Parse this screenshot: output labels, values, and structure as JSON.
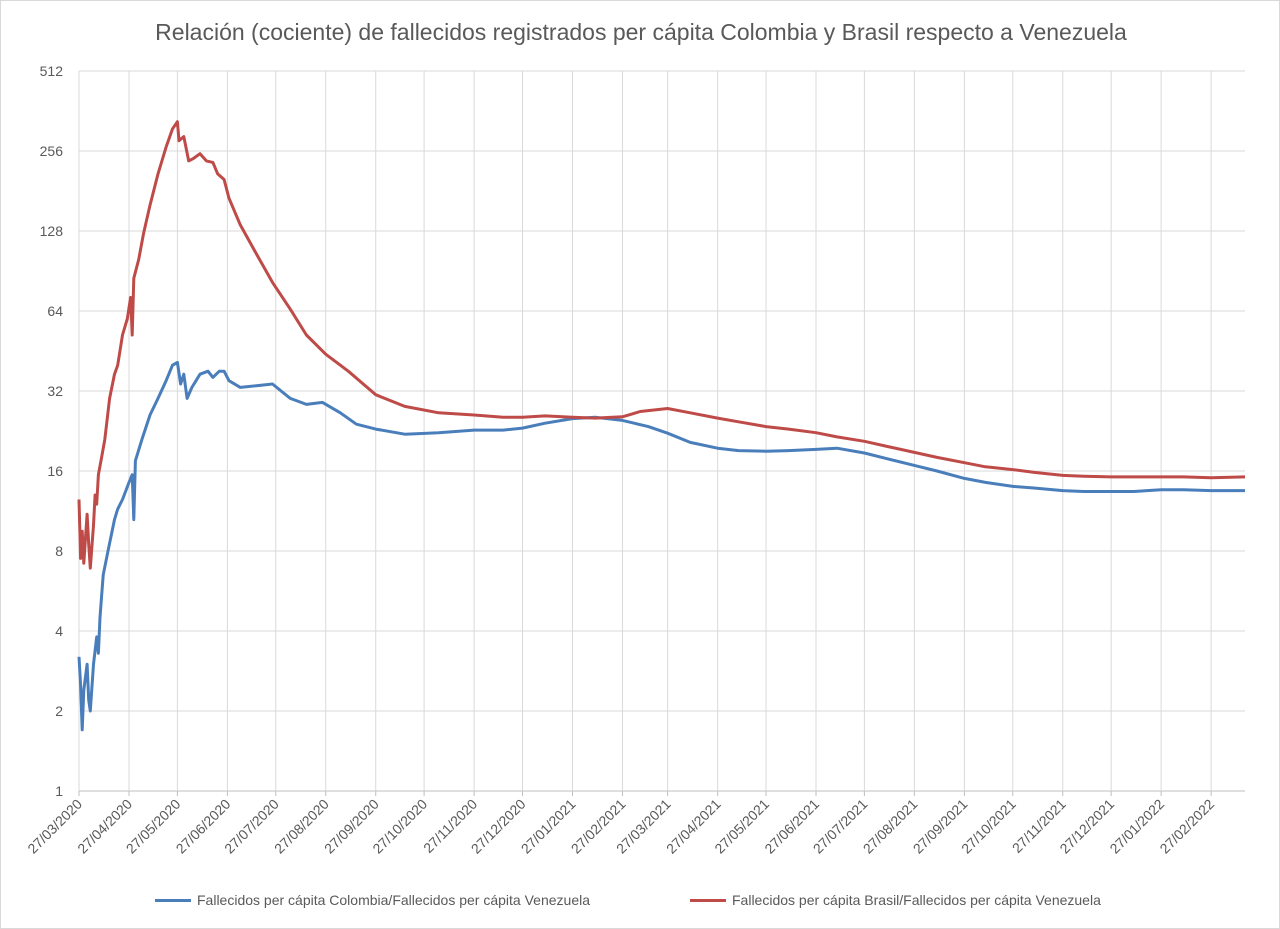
{
  "chart_data": {
    "type": "line",
    "title": "Relación (cociente) de fallecidos registrados per cápita Colombia y Brasil respecto a Venezuela",
    "xlabel": "",
    "ylabel": "",
    "y_scale": "log2",
    "ylim": [
      1,
      512
    ],
    "y_ticks": [
      "1",
      "2",
      "4",
      "8",
      "16",
      "32",
      "64",
      "128",
      "256",
      "512"
    ],
    "x_ticks": [
      "27/03/2020",
      "27/04/2020",
      "27/05/2020",
      "27/06/2020",
      "27/07/2020",
      "27/08/2020",
      "27/09/2020",
      "27/10/2020",
      "27/11/2020",
      "27/12/2020",
      "27/01/2021",
      "27/02/2021",
      "27/03/2021",
      "27/04/2021",
      "27/05/2021",
      "27/06/2021",
      "27/07/2021",
      "27/08/2021",
      "27/09/2021",
      "27/10/2021",
      "27/11/2021",
      "27/12/2021",
      "27/01/2022",
      "27/02/2022"
    ],
    "xlim": [
      "2020-03-27",
      "2022-03-20"
    ],
    "grid": true,
    "legend_position": "bottom",
    "series": [
      {
        "name": "Fallecidos per cápita Colombia/Fallecidos per cápita Venezuela",
        "color": "#4a7ebb",
        "points": [
          [
            "2020-03-27",
            3.2
          ],
          [
            "2020-03-28",
            2.5
          ],
          [
            "2020-03-29",
            1.7
          ],
          [
            "2020-03-30",
            2.4
          ],
          [
            "2020-04-01",
            3.0
          ],
          [
            "2020-04-02",
            2.2
          ],
          [
            "2020-04-03",
            2.0
          ],
          [
            "2020-04-05",
            3.0
          ],
          [
            "2020-04-07",
            3.8
          ],
          [
            "2020-04-08",
            3.3
          ],
          [
            "2020-04-09",
            4.5
          ],
          [
            "2020-04-11",
            6.5
          ],
          [
            "2020-04-14",
            8.0
          ],
          [
            "2020-04-18",
            10.5
          ],
          [
            "2020-04-20",
            11.5
          ],
          [
            "2020-04-23",
            12.5
          ],
          [
            "2020-04-27",
            14.5
          ],
          [
            "2020-04-29",
            15.5
          ],
          [
            "2020-04-30",
            10.5
          ],
          [
            "2020-05-01",
            17.5
          ],
          [
            "2020-05-05",
            21
          ],
          [
            "2020-05-10",
            26
          ],
          [
            "2020-05-15",
            30
          ],
          [
            "2020-05-20",
            35
          ],
          [
            "2020-05-24",
            40
          ],
          [
            "2020-05-27",
            41
          ],
          [
            "2020-05-29",
            34
          ],
          [
            "2020-05-31",
            37
          ],
          [
            "2020-06-02",
            30
          ],
          [
            "2020-06-05",
            33
          ],
          [
            "2020-06-10",
            37
          ],
          [
            "2020-06-15",
            38
          ],
          [
            "2020-06-18",
            36
          ],
          [
            "2020-06-22",
            38
          ],
          [
            "2020-06-25",
            38
          ],
          [
            "2020-06-28",
            35
          ],
          [
            "2020-07-05",
            33
          ],
          [
            "2020-07-15",
            33.5
          ],
          [
            "2020-07-25",
            34
          ],
          [
            "2020-08-05",
            30
          ],
          [
            "2020-08-15",
            28.5
          ],
          [
            "2020-08-25",
            29
          ],
          [
            "2020-09-05",
            26.5
          ],
          [
            "2020-09-15",
            24
          ],
          [
            "2020-09-27",
            23
          ],
          [
            "2020-10-15",
            22
          ],
          [
            "2020-11-05",
            22.3
          ],
          [
            "2020-11-27",
            22.8
          ],
          [
            "2020-12-15",
            22.8
          ],
          [
            "2020-12-27",
            23.2
          ],
          [
            "2021-01-10",
            24.2
          ],
          [
            "2021-01-27",
            25.2
          ],
          [
            "2021-02-10",
            25.5
          ],
          [
            "2021-02-27",
            24.8
          ],
          [
            "2021-03-15",
            23.5
          ],
          [
            "2021-03-27",
            22.2
          ],
          [
            "2021-04-10",
            20.5
          ],
          [
            "2021-04-27",
            19.5
          ],
          [
            "2021-05-10",
            19.1
          ],
          [
            "2021-05-27",
            19
          ],
          [
            "2021-06-10",
            19.1
          ],
          [
            "2021-06-27",
            19.3
          ],
          [
            "2021-07-10",
            19.5
          ],
          [
            "2021-07-27",
            18.7
          ],
          [
            "2021-08-10",
            17.8
          ],
          [
            "2021-08-27",
            16.8
          ],
          [
            "2021-09-10",
            16
          ],
          [
            "2021-09-27",
            15
          ],
          [
            "2021-10-10",
            14.5
          ],
          [
            "2021-10-27",
            14
          ],
          [
            "2021-11-10",
            13.8
          ],
          [
            "2021-11-27",
            13.5
          ],
          [
            "2021-12-10",
            13.4
          ],
          [
            "2021-12-27",
            13.4
          ],
          [
            "2022-01-10",
            13.4
          ],
          [
            "2022-01-27",
            13.6
          ],
          [
            "2022-02-10",
            13.6
          ],
          [
            "2022-02-27",
            13.5
          ],
          [
            "2022-03-20",
            13.5
          ]
        ]
      },
      {
        "name": "Fallecidos per cápita Brasil/Fallecidos per cápita Venezuela",
        "color": "#be4b48",
        "points": [
          [
            "2020-03-27",
            12.5
          ],
          [
            "2020-03-28",
            7.5
          ],
          [
            "2020-03-29",
            9.5
          ],
          [
            "2020-03-30",
            7.2
          ],
          [
            "2020-04-01",
            11
          ],
          [
            "2020-04-02",
            8.5
          ],
          [
            "2020-04-03",
            6.9
          ],
          [
            "2020-04-05",
            10
          ],
          [
            "2020-04-06",
            13
          ],
          [
            "2020-04-07",
            12
          ],
          [
            "2020-04-08",
            15.5
          ],
          [
            "2020-04-10",
            18
          ],
          [
            "2020-04-12",
            21
          ],
          [
            "2020-04-15",
            30
          ],
          [
            "2020-04-18",
            37
          ],
          [
            "2020-04-20",
            40
          ],
          [
            "2020-04-23",
            52
          ],
          [
            "2020-04-26",
            60
          ],
          [
            "2020-04-28",
            72
          ],
          [
            "2020-04-29",
            52
          ],
          [
            "2020-04-30",
            85
          ],
          [
            "2020-05-03",
            100
          ],
          [
            "2020-05-06",
            125
          ],
          [
            "2020-05-10",
            160
          ],
          [
            "2020-05-15",
            210
          ],
          [
            "2020-05-20",
            265
          ],
          [
            "2020-05-24",
            310
          ],
          [
            "2020-05-27",
            330
          ],
          [
            "2020-05-28",
            280
          ],
          [
            "2020-05-31",
            290
          ],
          [
            "2020-06-03",
            235
          ],
          [
            "2020-06-06",
            240
          ],
          [
            "2020-06-10",
            250
          ],
          [
            "2020-06-14",
            235
          ],
          [
            "2020-06-18",
            232
          ],
          [
            "2020-06-21",
            210
          ],
          [
            "2020-06-25",
            200
          ],
          [
            "2020-06-28",
            170
          ],
          [
            "2020-07-05",
            135
          ],
          [
            "2020-07-15",
            105
          ],
          [
            "2020-07-25",
            82
          ],
          [
            "2020-08-05",
            65
          ],
          [
            "2020-08-15",
            52
          ],
          [
            "2020-08-27",
            44
          ],
          [
            "2020-09-10",
            38
          ],
          [
            "2020-09-27",
            31
          ],
          [
            "2020-10-15",
            28
          ],
          [
            "2020-11-05",
            26.5
          ],
          [
            "2020-11-27",
            26
          ],
          [
            "2020-12-15",
            25.5
          ],
          [
            "2020-12-27",
            25.5
          ],
          [
            "2021-01-10",
            25.8
          ],
          [
            "2021-01-27",
            25.5
          ],
          [
            "2021-02-10",
            25.3
          ],
          [
            "2021-02-27",
            25.6
          ],
          [
            "2021-03-10",
            26.8
          ],
          [
            "2021-03-27",
            27.5
          ],
          [
            "2021-04-10",
            26.5
          ],
          [
            "2021-04-27",
            25.3
          ],
          [
            "2021-05-10",
            24.5
          ],
          [
            "2021-05-27",
            23.5
          ],
          [
            "2021-06-10",
            23
          ],
          [
            "2021-06-27",
            22.3
          ],
          [
            "2021-07-10",
            21.5
          ],
          [
            "2021-07-27",
            20.7
          ],
          [
            "2021-08-10",
            19.8
          ],
          [
            "2021-08-27",
            18.8
          ],
          [
            "2021-09-10",
            18
          ],
          [
            "2021-09-27",
            17.2
          ],
          [
            "2021-10-10",
            16.6
          ],
          [
            "2021-10-27",
            16.2
          ],
          [
            "2021-11-10",
            15.8
          ],
          [
            "2021-11-27",
            15.4
          ],
          [
            "2021-12-10",
            15.3
          ],
          [
            "2021-12-27",
            15.2
          ],
          [
            "2022-01-10",
            15.2
          ],
          [
            "2022-01-27",
            15.2
          ],
          [
            "2022-02-10",
            15.2
          ],
          [
            "2022-02-27",
            15.1
          ],
          [
            "2022-03-20",
            15.2
          ]
        ]
      }
    ]
  }
}
